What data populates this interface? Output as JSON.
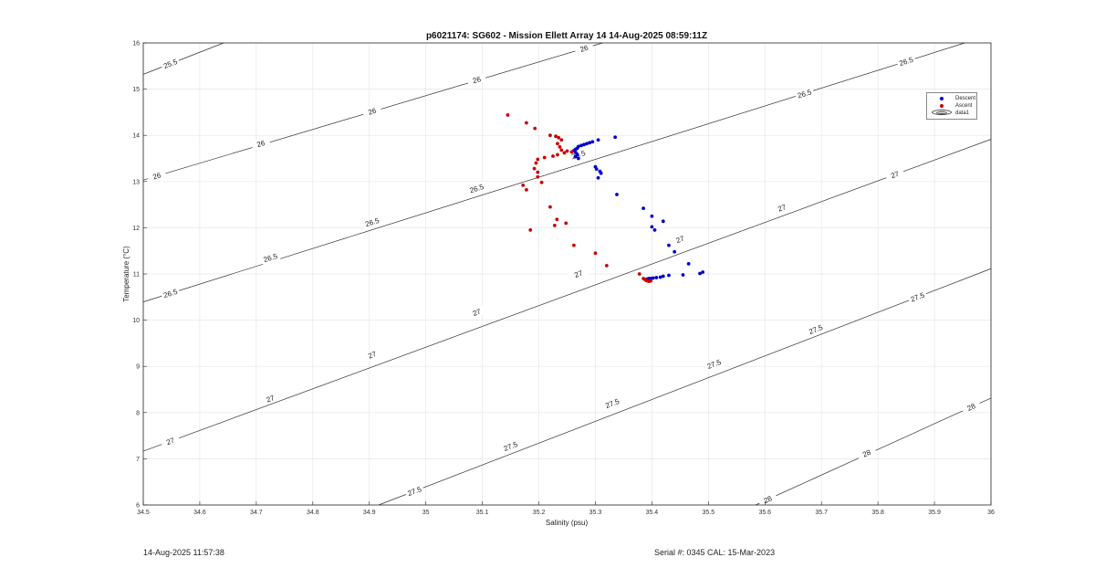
{
  "chart_data": {
    "type": "scatter",
    "title": "p6021174: SG602 - Mission Ellett Array 14 14-Aug-2025 08:59:11Z",
    "xlabel": "Salinity (psu)",
    "ylabel": "Temperature (°C)",
    "xlim": [
      34.5,
      36
    ],
    "ylim": [
      6,
      16
    ],
    "xticks": [
      "34.5",
      "34.6",
      "34.7",
      "34.8",
      "34.9",
      "35",
      "35.1",
      "35.2",
      "35.3",
      "35.4",
      "35.5",
      "35.6",
      "35.7",
      "35.8",
      "35.9",
      "36"
    ],
    "yticks": [
      "6",
      "7",
      "8",
      "9",
      "10",
      "11",
      "12",
      "13",
      "14",
      "15",
      "16"
    ],
    "grid": true,
    "legend_position": "top-right",
    "colors": {
      "descent": "#0000cc",
      "ascent": "#cc0000",
      "contour": "#333333",
      "grid": "#e6e6e6"
    },
    "series": [
      {
        "name": "Descent",
        "points": [
          [
            35.335,
            13.96
          ],
          [
            35.305,
            13.9
          ],
          [
            35.295,
            13.86
          ],
          [
            35.29,
            13.84
          ],
          [
            35.285,
            13.82
          ],
          [
            35.28,
            13.8
          ],
          [
            35.275,
            13.78
          ],
          [
            35.27,
            13.76
          ],
          [
            35.268,
            13.72
          ],
          [
            35.265,
            13.7
          ],
          [
            35.262,
            13.67
          ],
          [
            35.265,
            13.63
          ],
          [
            35.268,
            13.58
          ],
          [
            35.265,
            13.54
          ],
          [
            35.27,
            13.5
          ],
          [
            35.3,
            13.32
          ],
          [
            35.302,
            13.27
          ],
          [
            35.308,
            13.22
          ],
          [
            35.31,
            13.18
          ],
          [
            35.305,
            13.08
          ],
          [
            35.338,
            12.72
          ],
          [
            35.385,
            12.42
          ],
          [
            35.4,
            12.25
          ],
          [
            35.42,
            12.14
          ],
          [
            35.4,
            12.02
          ],
          [
            35.405,
            11.95
          ],
          [
            35.43,
            11.62
          ],
          [
            35.44,
            11.48
          ],
          [
            35.465,
            11.22
          ],
          [
            35.49,
            11.04
          ],
          [
            35.485,
            11.01
          ],
          [
            35.455,
            10.98
          ],
          [
            35.43,
            10.97
          ],
          [
            35.42,
            10.95
          ],
          [
            35.415,
            10.93
          ],
          [
            35.408,
            10.92
          ],
          [
            35.402,
            10.91
          ],
          [
            35.398,
            10.9
          ],
          [
            35.395,
            10.9
          ],
          [
            35.392,
            10.89
          ]
        ]
      },
      {
        "name": "Ascent",
        "points": [
          [
            35.145,
            14.44
          ],
          [
            35.178,
            14.27
          ],
          [
            35.193,
            14.15
          ],
          [
            35.22,
            14.0
          ],
          [
            35.23,
            13.98
          ],
          [
            35.235,
            13.95
          ],
          [
            35.24,
            13.9
          ],
          [
            35.233,
            13.82
          ],
          [
            35.237,
            13.75
          ],
          [
            35.24,
            13.68
          ],
          [
            35.25,
            13.66
          ],
          [
            35.258,
            13.64
          ],
          [
            35.245,
            13.62
          ],
          [
            35.233,
            13.58
          ],
          [
            35.225,
            13.55
          ],
          [
            35.21,
            13.52
          ],
          [
            35.198,
            13.48
          ],
          [
            35.195,
            13.4
          ],
          [
            35.192,
            13.28
          ],
          [
            35.198,
            13.2
          ],
          [
            35.198,
            13.1
          ],
          [
            35.205,
            12.98
          ],
          [
            35.172,
            12.92
          ],
          [
            35.178,
            12.82
          ],
          [
            35.22,
            12.45
          ],
          [
            35.232,
            12.18
          ],
          [
            35.248,
            12.1
          ],
          [
            35.228,
            12.05
          ],
          [
            35.185,
            11.95
          ],
          [
            35.262,
            11.62
          ],
          [
            35.3,
            11.45
          ],
          [
            35.32,
            11.18
          ],
          [
            35.378,
            11.0
          ],
          [
            35.385,
            10.9
          ],
          [
            35.388,
            10.88
          ],
          [
            35.39,
            10.86
          ],
          [
            35.392,
            10.85
          ],
          [
            35.395,
            10.84
          ],
          [
            35.398,
            10.85
          ]
        ]
      },
      {
        "name": "data1",
        "points": []
      }
    ],
    "contours": [
      {
        "label": "25.5",
        "labels_at": [
          [
            34.548,
            15.55
          ]
        ]
      },
      {
        "label": "26",
        "labels_at": [
          [
            34.524,
            13.12
          ],
          [
            34.708,
            13.82
          ],
          [
            34.905,
            14.52
          ],
          [
            35.09,
            15.2
          ],
          [
            35.28,
            15.88
          ]
        ]
      },
      {
        "label": "26.5",
        "labels_at": [
          [
            34.548,
            10.58
          ],
          [
            34.725,
            11.35
          ],
          [
            34.905,
            12.12
          ],
          [
            35.09,
            12.85
          ],
          [
            35.27,
            13.58
          ],
          [
            35.67,
            14.9
          ],
          [
            35.85,
            15.6
          ]
        ]
      },
      {
        "label": "27",
        "labels_at": [
          [
            34.548,
            7.38
          ],
          [
            34.725,
            8.3
          ],
          [
            34.905,
            9.25
          ],
          [
            35.09,
            10.17
          ],
          [
            35.27,
            11.0
          ],
          [
            35.45,
            11.75
          ],
          [
            35.63,
            12.43
          ],
          [
            35.83,
            13.15
          ]
        ]
      },
      {
        "label": "27.5",
        "labels_at": [
          [
            34.98,
            6.3
          ],
          [
            35.15,
            7.27
          ],
          [
            35.33,
            8.2
          ],
          [
            35.51,
            9.05
          ],
          [
            35.69,
            9.8
          ],
          [
            35.87,
            10.5
          ]
        ]
      },
      {
        "label": "28",
        "labels_at": [
          [
            35.605,
            6.12
          ],
          [
            35.78,
            7.12
          ],
          [
            35.965,
            8.12
          ]
        ]
      }
    ]
  },
  "footer": {
    "timestamp": "14-Aug-2025 11:57:38",
    "serial": "Serial #: 0345  CAL: 15-Mar-2023"
  }
}
